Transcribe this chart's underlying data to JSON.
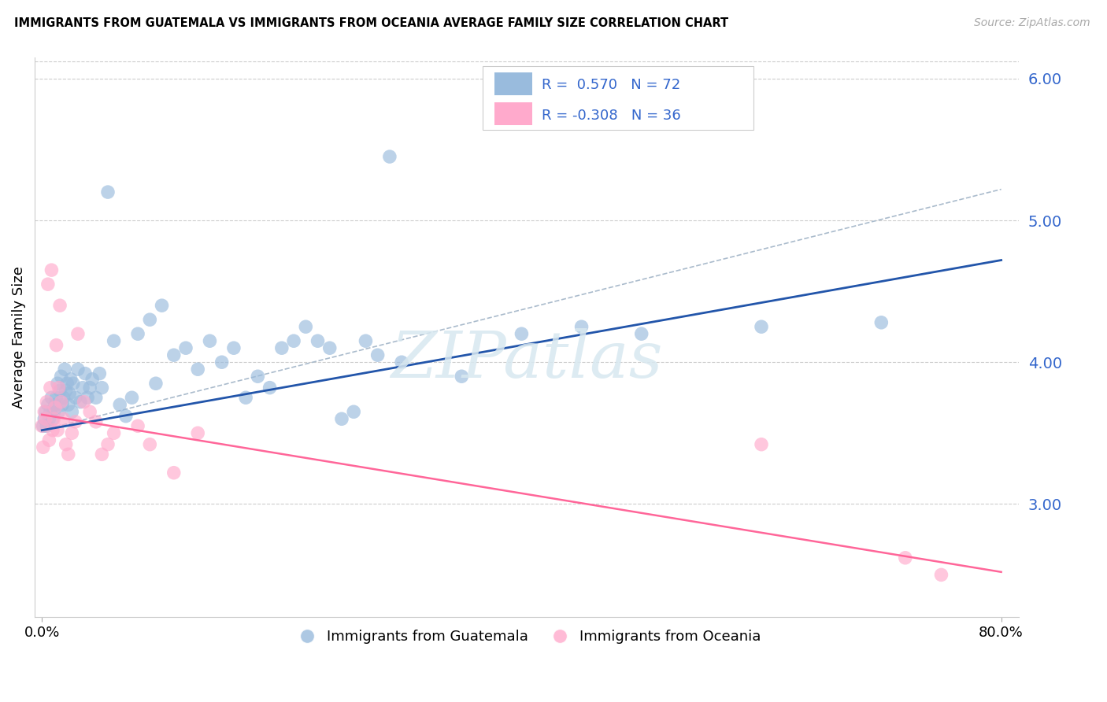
{
  "title": "IMMIGRANTS FROM GUATEMALA VS IMMIGRANTS FROM OCEANIA AVERAGE FAMILY SIZE CORRELATION CHART",
  "source": "Source: ZipAtlas.com",
  "ylabel": "Average Family Size",
  "yticks": [
    3.0,
    4.0,
    5.0,
    6.0
  ],
  "ymin": 2.2,
  "ymax": 6.15,
  "xmin": -0.006,
  "xmax": 0.815,
  "watermark": "ZIPatlas",
  "blue_color": "#99BBDD",
  "pink_color": "#FFAACC",
  "blue_line_color": "#2255AA",
  "pink_line_color": "#FF6699",
  "dash_line_color": "#AABBCC",
  "text_blue": "#3366CC",
  "grid_color": "#CCCCCC",
  "guatemala_x": [
    0.001,
    0.002,
    0.003,
    0.004,
    0.005,
    0.006,
    0.007,
    0.008,
    0.009,
    0.01,
    0.011,
    0.012,
    0.013,
    0.014,
    0.015,
    0.016,
    0.017,
    0.018,
    0.019,
    0.02,
    0.021,
    0.022,
    0.023,
    0.024,
    0.025,
    0.026,
    0.028,
    0.03,
    0.032,
    0.034,
    0.036,
    0.038,
    0.04,
    0.042,
    0.045,
    0.048,
    0.05,
    0.055,
    0.06,
    0.065,
    0.07,
    0.075,
    0.08,
    0.09,
    0.095,
    0.1,
    0.11,
    0.12,
    0.13,
    0.14,
    0.15,
    0.16,
    0.17,
    0.18,
    0.19,
    0.2,
    0.21,
    0.22,
    0.23,
    0.24,
    0.25,
    0.26,
    0.27,
    0.28,
    0.29,
    0.3,
    0.35,
    0.4,
    0.45,
    0.5,
    0.6,
    0.7
  ],
  "guatemala_y": [
    3.55,
    3.6,
    3.65,
    3.55,
    3.7,
    3.6,
    3.65,
    3.75,
    3.6,
    3.65,
    3.7,
    3.75,
    3.85,
    3.65,
    3.8,
    3.9,
    3.7,
    3.75,
    3.95,
    3.8,
    3.85,
    3.7,
    3.78,
    3.88,
    3.65,
    3.85,
    3.75,
    3.95,
    3.72,
    3.82,
    3.92,
    3.75,
    3.82,
    3.88,
    3.75,
    3.92,
    3.82,
    5.2,
    4.15,
    3.7,
    3.62,
    3.75,
    4.2,
    4.3,
    3.85,
    4.4,
    4.05,
    4.1,
    3.95,
    4.15,
    4.0,
    4.1,
    3.75,
    3.9,
    3.82,
    4.1,
    4.15,
    4.25,
    4.15,
    4.1,
    3.6,
    3.65,
    4.15,
    4.05,
    5.45,
    4.0,
    3.9,
    4.2,
    4.25,
    4.2,
    4.25,
    4.28
  ],
  "oceania_x": [
    0.0,
    0.001,
    0.002,
    0.003,
    0.004,
    0.005,
    0.006,
    0.007,
    0.008,
    0.009,
    0.01,
    0.011,
    0.012,
    0.013,
    0.014,
    0.015,
    0.016,
    0.018,
    0.02,
    0.022,
    0.025,
    0.028,
    0.03,
    0.035,
    0.04,
    0.045,
    0.05,
    0.055,
    0.06,
    0.08,
    0.09,
    0.11,
    0.13,
    0.6,
    0.72,
    0.75
  ],
  "oceania_y": [
    3.55,
    3.4,
    3.65,
    3.6,
    3.72,
    4.55,
    3.45,
    3.82,
    4.65,
    3.52,
    3.6,
    3.68,
    4.12,
    3.52,
    3.82,
    4.4,
    3.72,
    3.6,
    3.42,
    3.35,
    3.5,
    3.58,
    4.2,
    3.72,
    3.65,
    3.58,
    3.35,
    3.42,
    3.5,
    3.55,
    3.42,
    3.22,
    3.5,
    3.42,
    2.62,
    2.5
  ],
  "blue_line_x": [
    0.0,
    0.8
  ],
  "blue_line_y": [
    3.52,
    4.72
  ],
  "pink_line_x": [
    0.0,
    0.8
  ],
  "pink_line_y": [
    3.63,
    2.52
  ],
  "dash_line_x": [
    0.0,
    0.8
  ],
  "dash_line_y": [
    3.52,
    5.22
  ]
}
